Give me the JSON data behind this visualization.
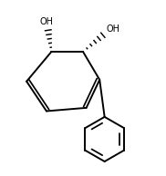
{
  "background": "#ffffff",
  "line_color": "#000000",
  "lw": 1.4,
  "fig_width": 1.82,
  "fig_height": 1.94,
  "dpi": 100,
  "oh1_label": "OH",
  "oh2_label": "OH",
  "oh_fontsize": 7.0
}
